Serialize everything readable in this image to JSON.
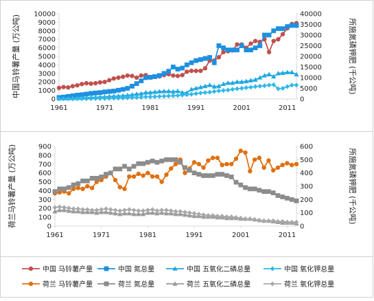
{
  "chart_data": [
    {
      "type": "line",
      "ylabel": "中国马铃薯产量 (万公吨)",
      "ylabel2": "所施氮磷钾肥 (千公吨)",
      "xticks": [
        "1961",
        "1971",
        "1981",
        "1991",
        "2001",
        "2011"
      ],
      "xlim": [
        1961,
        2013
      ],
      "ylim": [
        0,
        10000
      ],
      "yticks": [
        "0",
        "1000",
        "2000",
        "3000",
        "4000",
        "5000",
        "6000",
        "7000",
        "8000",
        "9000",
        "10000"
      ],
      "ylim2": [
        0,
        40000
      ],
      "yticks2": [
        "0",
        "5000",
        "10000",
        "15000",
        "20000",
        "25000",
        "30000",
        "35000",
        "40000"
      ],
      "x": [
        1961,
        1962,
        1963,
        1964,
        1965,
        1966,
        1967,
        1968,
        1969,
        1970,
        1971,
        1972,
        1973,
        1974,
        1975,
        1976,
        1977,
        1978,
        1979,
        1980,
        1981,
        1982,
        1983,
        1984,
        1985,
        1986,
        1987,
        1988,
        1989,
        1990,
        1991,
        1992,
        1993,
        1994,
        1995,
        1996,
        1997,
        1998,
        1999,
        2000,
        2001,
        2002,
        2003,
        2004,
        2005,
        2006,
        2007,
        2008,
        2009,
        2010,
        2011,
        2012,
        2013
      ],
      "series": [
        {
          "name": "中国 马铃薯产量",
          "axis": "left",
          "marker": "circle",
          "values": [
            1300,
            1400,
            1350,
            1500,
            1600,
            1750,
            1850,
            1800,
            1850,
            1950,
            2000,
            2200,
            2400,
            2500,
            2600,
            2750,
            2700,
            2500,
            2750,
            2800,
            2500,
            2600,
            2650,
            2800,
            2900,
            2750,
            2700,
            2800,
            3200,
            3300,
            3300,
            3300,
            3600,
            4500,
            4500,
            4900,
            5500,
            5600,
            5700,
            6400,
            6400,
            6000,
            6500,
            6800,
            6700,
            7000,
            5500,
            6800,
            7000,
            7600,
            8300,
            8800,
            8900
          ]
        },
        {
          "name": "中国 氮总量",
          "axis": "right",
          "marker": "square",
          "values": [
            700,
            900,
            1200,
            1500,
            1800,
            2000,
            2300,
            2600,
            2800,
            3000,
            3300,
            3500,
            3700,
            4100,
            4500,
            5000,
            6000,
            7200,
            8500,
            10000,
            10200,
            10500,
            11000,
            12000,
            13000,
            15000,
            14000,
            14500,
            16000,
            17000,
            18000,
            18500,
            19000,
            19500,
            17000,
            25000,
            24000,
            23000,
            23000,
            23000,
            25000,
            23000,
            23000,
            24000,
            25000,
            30000,
            30000,
            32000,
            33000,
            33000,
            34000,
            34500,
            34500
          ]
        },
        {
          "name": "中国 五氧化二磷总量",
          "axis": "right",
          "marker": "triangle",
          "values": [
            200,
            250,
            300,
            350,
            400,
            500,
            600,
            700,
            800,
            900,
            1000,
            1200,
            1300,
            1400,
            1500,
            1700,
            2000,
            2300,
            2500,
            3000,
            3000,
            3300,
            3500,
            3600,
            3600,
            3400,
            3700,
            3000,
            2900,
            4500,
            5000,
            5500,
            6000,
            6500,
            5800,
            6000,
            7000,
            7500,
            7500,
            8000,
            8000,
            8300,
            8700,
            9000,
            10000,
            11000,
            11500,
            10500,
            12000,
            12200,
            12500,
            12500,
            11500
          ]
        },
        {
          "name": "中国 氧化钾总量",
          "axis": "right",
          "marker": "diamond",
          "values": [
            50,
            60,
            70,
            80,
            100,
            100,
            120,
            150,
            200,
            200,
            250,
            300,
            350,
            400,
            450,
            500,
            600,
            700,
            800,
            1000,
            1000,
            1100,
            1200,
            1300,
            1400,
            1500,
            1600,
            1800,
            2000,
            2200,
            2500,
            2800,
            3000,
            3200,
            3500,
            3800,
            4000,
            4200,
            4500,
            4800,
            5000,
            5300,
            5500,
            5800,
            6000,
            6200,
            6500,
            6700,
            4800,
            5000,
            5800,
            6500,
            6500
          ]
        }
      ]
    },
    {
      "type": "line",
      "ylabel": "荷兰马铃薯产量 (万公吨)",
      "ylabel2": "所施氮磷钾肥 (千公吨)",
      "xticks": [
        "1961",
        "1971",
        "1981",
        "1991",
        "2001",
        "2011"
      ],
      "xlim": [
        1961,
        2013
      ],
      "ylim": [
        0,
        900
      ],
      "yticks": [
        "0",
        "100",
        "200",
        "300",
        "400",
        "500",
        "600",
        "700",
        "800",
        "900"
      ],
      "ylim2": [
        0,
        600
      ],
      "yticks2": [
        "0",
        "100",
        "200",
        "300",
        "400",
        "500",
        "600"
      ],
      "x": [
        1961,
        1962,
        1963,
        1964,
        1965,
        1966,
        1967,
        1968,
        1969,
        1970,
        1971,
        1972,
        1973,
        1974,
        1975,
        1976,
        1977,
        1978,
        1979,
        1980,
        1981,
        1982,
        1983,
        1984,
        1985,
        1986,
        1987,
        1988,
        1989,
        1990,
        1991,
        1992,
        1993,
        1994,
        1995,
        1996,
        1997,
        1998,
        1999,
        2000,
        2001,
        2002,
        2003,
        2004,
        2005,
        2006,
        2007,
        2008,
        2009,
        2010,
        2011,
        2012,
        2013
      ],
      "series": [
        {
          "name": "荷兰 马铃薯产量",
          "axis": "left",
          "marker": "circle",
          "values": [
            370,
            380,
            390,
            370,
            420,
            430,
            420,
            450,
            430,
            500,
            520,
            560,
            600,
            520,
            440,
            420,
            560,
            560,
            590,
            570,
            600,
            560,
            560,
            500,
            580,
            650,
            700,
            750,
            600,
            650,
            720,
            700,
            660,
            740,
            770,
            770,
            690,
            700,
            700,
            760,
            850,
            830,
            620,
            750,
            770,
            660,
            740,
            630,
            660,
            690,
            710,
            690,
            700
          ]
        },
        {
          "name": "荷兰 氮总量",
          "axis": "right",
          "marker": "square",
          "values": [
            260,
            280,
            280,
            290,
            310,
            320,
            340,
            340,
            360,
            360,
            370,
            390,
            400,
            430,
            430,
            450,
            430,
            450,
            470,
            470,
            480,
            490,
            480,
            490,
            500,
            500,
            500,
            480,
            440,
            420,
            400,
            390,
            380,
            380,
            380,
            390,
            390,
            380,
            370,
            330,
            310,
            290,
            280,
            280,
            270,
            260,
            260,
            250,
            230,
            220,
            210,
            200,
            190
          ]
        },
        {
          "name": "荷兰 五氧化二磷总量",
          "axis": "right",
          "marker": "triangle",
          "values": [
            110,
            120,
            120,
            115,
            110,
            110,
            105,
            105,
            105,
            100,
            105,
            105,
            100,
            95,
            90,
            95,
            95,
            90,
            90,
            90,
            100,
            100,
            95,
            100,
            95,
            95,
            90,
            90,
            85,
            80,
            75,
            75,
            70,
            70,
            70,
            65,
            65,
            60,
            60,
            60,
            55,
            55,
            55,
            50,
            45,
            40,
            40,
            35,
            30,
            25,
            25,
            25,
            20
          ]
        },
        {
          "name": "荷兰 氧化钾总量",
          "axis": "right",
          "marker": "diamond",
          "values": [
            140,
            145,
            140,
            135,
            130,
            130,
            125,
            125,
            120,
            120,
            125,
            130,
            125,
            120,
            115,
            120,
            125,
            120,
            115,
            115,
            120,
            125,
            115,
            120,
            120,
            115,
            110,
            110,
            105,
            100,
            95,
            90,
            85,
            80,
            80,
            75,
            75,
            70,
            70,
            65,
            60,
            55,
            55,
            50,
            45,
            40,
            40,
            40,
            35,
            35,
            30,
            30,
            30
          ]
        }
      ]
    }
  ],
  "legend": {
    "placement": "bottom",
    "rows": [
      [
        "中国 马铃薯产量",
        "中国 氮总量",
        "中国 五氧化二磷总量",
        "中国 氧化钾总量"
      ],
      [
        "荷兰 马铃薯产量",
        "荷兰 氮总量",
        "荷兰 五氧化二磷总量",
        "荷兰 氧化钾总量"
      ]
    ]
  },
  "colors": {
    "china_potato": "#c0504d",
    "china_n": "#1e90e0",
    "china_p": "#20a8e0",
    "china_k": "#30b8e8",
    "nl_potato": "#e07010",
    "nl_n": "#8c8c8c",
    "nl_p": "#9a9a9a",
    "nl_k": "#a8a8a8",
    "frame": "#c8c8c8",
    "axis": "#d8d8d8",
    "text": "#222222"
  }
}
